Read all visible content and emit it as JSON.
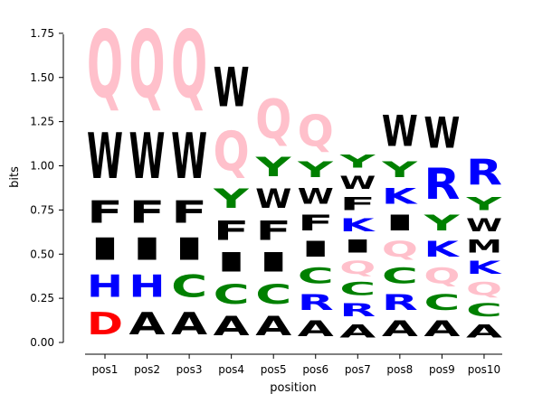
{
  "chart_data": {
    "type": "sequence-logo",
    "xlabel": "position",
    "ylabel": "bits",
    "ylim": [
      0,
      1.8
    ],
    "yticks": [
      "0.00",
      "0.25",
      "0.50",
      "0.75",
      "1.00",
      "1.25",
      "1.50",
      "1.75"
    ],
    "ytick_values": [
      0,
      0.25,
      0.5,
      0.75,
      1.0,
      1.25,
      1.5,
      1.75
    ],
    "categories": [
      "pos1",
      "pos2",
      "pos3",
      "pos4",
      "pos5",
      "pos6",
      "pos7",
      "pos8",
      "pos9",
      "pos10"
    ],
    "colors": {
      "D": "#ff0000",
      "H": "#0000ff",
      "R": "#0000ff",
      "K": "#0000ff",
      "C": "#008000",
      "Y": "#008000",
      "Q": "#ffc0cb",
      "A": "#000000",
      "I": "#000000",
      "F": "#000000",
      "W": "#000000",
      "M": "#000000"
    },
    "stacks": [
      [
        [
          "D",
          0.21
        ],
        [
          "H",
          0.21
        ],
        [
          "I",
          0.21
        ],
        [
          "F",
          0.21
        ],
        [
          "W",
          0.42
        ],
        [
          "Q",
          0.62
        ]
      ],
      [
        [
          "A",
          0.21
        ],
        [
          "H",
          0.21
        ],
        [
          "I",
          0.21
        ],
        [
          "F",
          0.21
        ],
        [
          "W",
          0.42
        ],
        [
          "Q",
          0.62
        ]
      ],
      [
        [
          "A",
          0.21
        ],
        [
          "C",
          0.21
        ],
        [
          "I",
          0.21
        ],
        [
          "F",
          0.21
        ],
        [
          "W",
          0.42
        ],
        [
          "Q",
          0.62
        ]
      ],
      [
        [
          "A",
          0.18
        ],
        [
          "C",
          0.18
        ],
        [
          "I",
          0.18
        ],
        [
          "F",
          0.18
        ],
        [
          "Y",
          0.18
        ],
        [
          "Q",
          0.36
        ],
        [
          "W",
          0.36
        ]
      ],
      [
        [
          "A",
          0.18
        ],
        [
          "C",
          0.18
        ],
        [
          "I",
          0.18
        ],
        [
          "F",
          0.18
        ],
        [
          "W",
          0.18
        ],
        [
          "Y",
          0.18
        ],
        [
          "Q",
          0.36
        ]
      ],
      [
        [
          "A",
          0.15
        ],
        [
          "R",
          0.15
        ],
        [
          "C",
          0.15
        ],
        [
          "I",
          0.15
        ],
        [
          "F",
          0.15
        ],
        [
          "W",
          0.15
        ],
        [
          "Y",
          0.15
        ],
        [
          "Q",
          0.29
        ]
      ],
      [
        [
          "A",
          0.12
        ],
        [
          "R",
          0.12
        ],
        [
          "C",
          0.12
        ],
        [
          "Q",
          0.12
        ],
        [
          "I",
          0.12
        ],
        [
          "K",
          0.12
        ],
        [
          "F",
          0.12
        ],
        [
          "W",
          0.12
        ],
        [
          "Y",
          0.12
        ]
      ],
      [
        [
          "A",
          0.15
        ],
        [
          "R",
          0.15
        ],
        [
          "C",
          0.15
        ],
        [
          "Q",
          0.15
        ],
        [
          "I",
          0.15
        ],
        [
          "K",
          0.15
        ],
        [
          "Y",
          0.15
        ],
        [
          "W",
          0.29
        ]
      ],
      [
        [
          "A",
          0.15
        ],
        [
          "C",
          0.15
        ],
        [
          "Q",
          0.15
        ],
        [
          "K",
          0.15
        ],
        [
          "Y",
          0.15
        ],
        [
          "R",
          0.29
        ],
        [
          "W",
          0.29
        ]
      ],
      [
        [
          "A",
          0.12
        ],
        [
          "C",
          0.12
        ],
        [
          "Q",
          0.12
        ],
        [
          "K",
          0.12
        ],
        [
          "M",
          0.12
        ],
        [
          "W",
          0.12
        ],
        [
          "Y",
          0.12
        ],
        [
          "R",
          0.24
        ]
      ]
    ]
  }
}
